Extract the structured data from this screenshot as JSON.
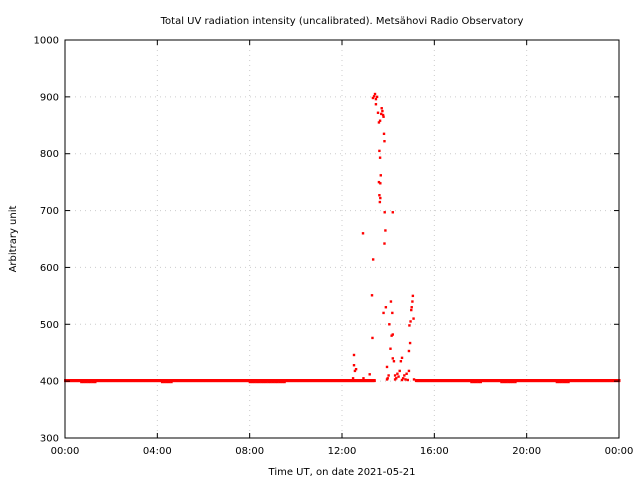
{
  "chart_data": {
    "type": "scatter",
    "title": "Total UV radiation intensity (uncalibrated). Metsähovi Radio Observatory",
    "xlabel": "Time UT, on date 2021-05-21",
    "ylabel": "Arbitrary unit",
    "xlim_hours": [
      0,
      24
    ],
    "ylim": [
      300,
      1000
    ],
    "x_ticks": [
      {
        "h": 0,
        "label": "00:00"
      },
      {
        "h": 4,
        "label": "04:00"
      },
      {
        "h": 8,
        "label": "08:00"
      },
      {
        "h": 12,
        "label": "12:00"
      },
      {
        "h": 16,
        "label": "16:00"
      },
      {
        "h": 20,
        "label": "20:00"
      },
      {
        "h": 24,
        "label": "00:00"
      }
    ],
    "y_ticks": [
      {
        "v": 300,
        "label": "300"
      },
      {
        "v": 400,
        "label": "400"
      },
      {
        "v": 500,
        "label": "500"
      },
      {
        "v": 600,
        "label": "600"
      },
      {
        "v": 700,
        "label": "700"
      },
      {
        "v": 800,
        "label": "800"
      },
      {
        "v": 900,
        "label": "900"
      },
      {
        "v": 1000,
        "label": "1000"
      }
    ],
    "grid": true,
    "marker_color": "#ff0000",
    "baseline": {
      "value": 401,
      "start_hour": 0,
      "end_hour": 24,
      "step_minutes": 2,
      "gap_hours": [
        13.4,
        15.2
      ],
      "dip_value": 399,
      "dip_hours": [
        [
          0.7,
          1.3
        ],
        [
          4.2,
          4.6
        ],
        [
          8.0,
          9.5
        ],
        [
          17.6,
          18.0
        ],
        [
          18.9,
          19.5
        ],
        [
          21.3,
          21.8
        ]
      ]
    },
    "points": [
      [
        12.48,
        405
      ],
      [
        12.52,
        428
      ],
      [
        12.52,
        446
      ],
      [
        12.56,
        418
      ],
      [
        12.61,
        421
      ],
      [
        12.91,
        660
      ],
      [
        12.93,
        405
      ],
      [
        13.2,
        412
      ],
      [
        13.3,
        551
      ],
      [
        13.32,
        476
      ],
      [
        13.35,
        614
      ],
      [
        13.34,
        898
      ],
      [
        13.39,
        901
      ],
      [
        13.43,
        905
      ],
      [
        13.47,
        896
      ],
      [
        13.52,
        900
      ],
      [
        13.47,
        887
      ],
      [
        13.56,
        872
      ],
      [
        13.6,
        855
      ],
      [
        13.65,
        858
      ],
      [
        13.7,
        870
      ],
      [
        13.75,
        875
      ],
      [
        13.78,
        868
      ],
      [
        13.72,
        880
      ],
      [
        13.8,
        865
      ],
      [
        13.82,
        835
      ],
      [
        13.84,
        822
      ],
      [
        13.62,
        805
      ],
      [
        13.65,
        793
      ],
      [
        13.68,
        762
      ],
      [
        13.6,
        750
      ],
      [
        13.66,
        748
      ],
      [
        13.62,
        727
      ],
      [
        13.64,
        715
      ],
      [
        13.66,
        722
      ],
      [
        13.85,
        697
      ],
      [
        13.88,
        665
      ],
      [
        13.84,
        642
      ],
      [
        14.2,
        697
      ],
      [
        13.8,
        520
      ],
      [
        13.9,
        530
      ],
      [
        13.95,
        425
      ],
      [
        13.98,
        405
      ],
      [
        14.02,
        410
      ],
      [
        14.1,
        457
      ],
      [
        14.15,
        480
      ],
      [
        14.2,
        482
      ],
      [
        14.18,
        520
      ],
      [
        14.12,
        540
      ],
      [
        14.05,
        500
      ],
      [
        14.2,
        440
      ],
      [
        14.25,
        435
      ],
      [
        14.3,
        410
      ],
      [
        14.35,
        405
      ],
      [
        14.4,
        413
      ],
      [
        14.45,
        408
      ],
      [
        14.5,
        418
      ],
      [
        14.55,
        435
      ],
      [
        14.6,
        441
      ],
      [
        14.65,
        405
      ],
      [
        14.7,
        410
      ],
      [
        14.75,
        403
      ],
      [
        14.8,
        413
      ],
      [
        14.85,
        402
      ],
      [
        14.9,
        418
      ],
      [
        14.9,
        453
      ],
      [
        14.95,
        467
      ],
      [
        14.92,
        498
      ],
      [
        14.97,
        505
      ],
      [
        15.0,
        525
      ],
      [
        15.02,
        530
      ],
      [
        15.05,
        540
      ],
      [
        15.07,
        550
      ],
      [
        15.1,
        510
      ],
      [
        15.12,
        403
      ],
      [
        14.3,
        403
      ],
      [
        14.6,
        402
      ],
      [
        13.95,
        403
      ]
    ]
  }
}
